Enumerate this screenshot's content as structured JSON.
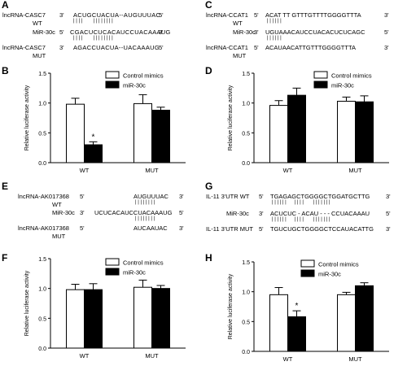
{
  "panels": {
    "A": {
      "label": "A",
      "rows": [
        {
          "name": "lncRNA-CASC7",
          "name2": "WT",
          "seq": "ACUGCUACUA--AUGUUUAC",
          "e1": "3'",
          "e2": "5'"
        },
        {
          "name": "MiR-30c",
          "name2": "",
          "seq": "CGACUCUCACAUCCUACAAAUG",
          "e1": "5'",
          "e2": "3'"
        },
        {
          "name": "lncRNA-CASC7",
          "name2": "MUT",
          "seq": "AGACCUACUA--UACAAAUG",
          "e1": "3'",
          "e2": "5'"
        }
      ],
      "pairs": "| | | |        | | | | | | | |"
    },
    "C": {
      "label": "C",
      "rows": [
        {
          "name": "lncRNA-CCAT1",
          "name2": "WT",
          "seq": "ACAT TT GTTTGTTTTGGGGTTTA",
          "e1": "5'",
          "e2": "3'"
        },
        {
          "name": "MiR-30c",
          "name2": "",
          "seq": "UGUAAACAUCCUACACUCUCAGC",
          "e1": "3'",
          "e2": "5'"
        },
        {
          "name": "lncRNA-CCAT1",
          "name2": "MUT",
          "seq": "ACAUAACATTGTTTGGGGTTTA",
          "e1": "5'",
          "e2": "3'"
        }
      ],
      "pairs": "| | | | | |"
    },
    "E": {
      "label": "E",
      "rows": [
        {
          "name": "lncRNA-AK017368",
          "name2": "WT",
          "seq": "AUGUUUAC",
          "e1": "5'",
          "e2": "3'"
        },
        {
          "name": "MiR-30c",
          "name2": "",
          "seq": "UCUCACAUCCUACAAAUG",
          "e1": "3'",
          "e2": "5'"
        },
        {
          "name": "lncRNA-AK017368",
          "name2": "MUT",
          "seq": "AUCAAUAC",
          "e1": "5'",
          "e2": "3'"
        }
      ],
      "pairs": "| | | | | | | |"
    },
    "G": {
      "label": "G",
      "rows": [
        {
          "name": "IL-11 3'UTR WT",
          "name2": "",
          "seq": "TGAGAGCTGGGGCTGGATGCTTG",
          "e1": "5'",
          "e2": "3'"
        },
        {
          "name": "MiR-30c",
          "name2": "",
          "seq": "ACUCUC - ACAU - - - CCUACAAAU",
          "e1": "3'",
          "e2": "5'"
        },
        {
          "name": "IL-11 3'UTR MUT",
          "name2": "",
          "seq": "TGUCUGCTGGGGCTCCAUACATTG",
          "e1": "5'",
          "e2": "3'"
        }
      ],
      "pairs": "| | | | | |      | | | |       | | | | | | |"
    }
  },
  "chart_data": [
    {
      "panel": "B",
      "type": "bar",
      "categories": [
        "WT",
        "MUT"
      ],
      "series": [
        {
          "name": "Control mimics",
          "values": [
            0.98,
            0.99
          ],
          "errors": [
            0.1,
            0.15
          ],
          "color": "#ffffff"
        },
        {
          "name": "miR-30c",
          "values": [
            0.3,
            0.88
          ],
          "errors": [
            0.05,
            0.05
          ],
          "color": "#000000"
        }
      ],
      "ylabel": "Relative luciferase activity",
      "ylim": [
        0,
        1.5
      ],
      "yticks": [
        "0.0",
        "0.5",
        "1.0",
        "1.5"
      ],
      "annotations": [
        {
          "series": 1,
          "category": 0,
          "text": "*"
        }
      ],
      "legend": "top-right"
    },
    {
      "panel": "D",
      "type": "bar",
      "categories": [
        "WT",
        "MUT"
      ],
      "series": [
        {
          "name": "Control mimics",
          "values": [
            0.96,
            1.03
          ],
          "errors": [
            0.08,
            0.07
          ],
          "color": "#ffffff"
        },
        {
          "name": "miR-30c",
          "values": [
            1.13,
            1.02
          ],
          "errors": [
            0.12,
            0.1
          ],
          "color": "#000000"
        }
      ],
      "ylabel": "Relative luciferase activity",
      "ylim": [
        0,
        1.5
      ],
      "yticks": [
        "0.0",
        "0.5",
        "1.0",
        "1.5"
      ],
      "annotations": [],
      "legend": "top-right"
    },
    {
      "panel": "F",
      "type": "bar",
      "categories": [
        "WT",
        "MUT"
      ],
      "series": [
        {
          "name": "Control mimics",
          "values": [
            0.98,
            1.02
          ],
          "errors": [
            0.09,
            0.12
          ],
          "color": "#ffffff"
        },
        {
          "name": "miR-30c",
          "values": [
            0.98,
            1.0
          ],
          "errors": [
            0.1,
            0.05
          ],
          "color": "#000000"
        }
      ],
      "ylabel": "Relative luciferase activity",
      "ylim": [
        0,
        1.5
      ],
      "yticks": [
        "0.0",
        "0.5",
        "1.0",
        "1.5"
      ],
      "annotations": [],
      "legend": "top-right"
    },
    {
      "panel": "H",
      "type": "bar",
      "categories": [
        "WT",
        "MUT"
      ],
      "series": [
        {
          "name": "Control mimics",
          "values": [
            0.95,
            0.95
          ],
          "errors": [
            0.12,
            0.04
          ],
          "color": "#ffffff"
        },
        {
          "name": "miR-30c",
          "values": [
            0.58,
            1.1
          ],
          "errors": [
            0.1,
            0.05
          ],
          "color": "#000000"
        }
      ],
      "ylabel": "Relative luciferase activity",
      "ylim": [
        0,
        1.5
      ],
      "yticks": [
        "0.0",
        "0.5",
        "1.0",
        "1.5"
      ],
      "annotations": [
        {
          "series": 1,
          "category": 0,
          "text": "*"
        }
      ],
      "legend": "top-center"
    }
  ]
}
